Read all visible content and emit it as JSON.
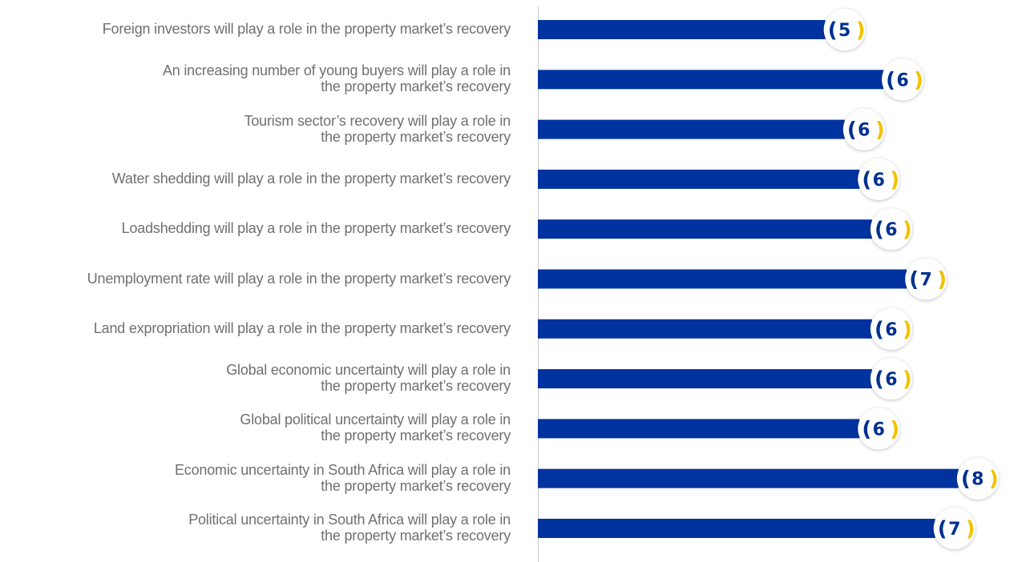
{
  "chart_data": {
    "type": "bar",
    "orientation": "horizontal",
    "categories": [
      "Foreign investors will play a role in the property market’s recovery",
      "An increasing number of young buyers will play a role in\nthe property market’s recovery",
      "Tourism sector’s recovery will play a role in\nthe property market’s recovery",
      "Water shedding will play a role in the property market’s recovery",
      "Loadshedding will play a role in the property market’s recovery",
      "Unemployment rate will play a role in the property market’s recovery",
      "Land expropriation will play a role in the property market’s recovery",
      "Global economic uncertainty will play a role in\nthe property market’s recovery",
      "Global political uncertainty will play a role in\nthe property market’s recovery",
      "Economic uncertainty in South Africa will play a role in\nthe property market’s recovery",
      "Political uncertainty in South Africa will play a role in\nthe property market’s recovery"
    ],
    "values": [
      5.39,
      6.41,
      5.73,
      5.99,
      6.21,
      6.82,
      6.21,
      6.21,
      5.99,
      7.73,
      7.32
    ],
    "value_labels": [
      "5",
      "6",
      "6",
      "6",
      "6",
      "7",
      "6",
      "6",
      "6",
      "8",
      "7"
    ],
    "color": "#0033a0"
  }
}
